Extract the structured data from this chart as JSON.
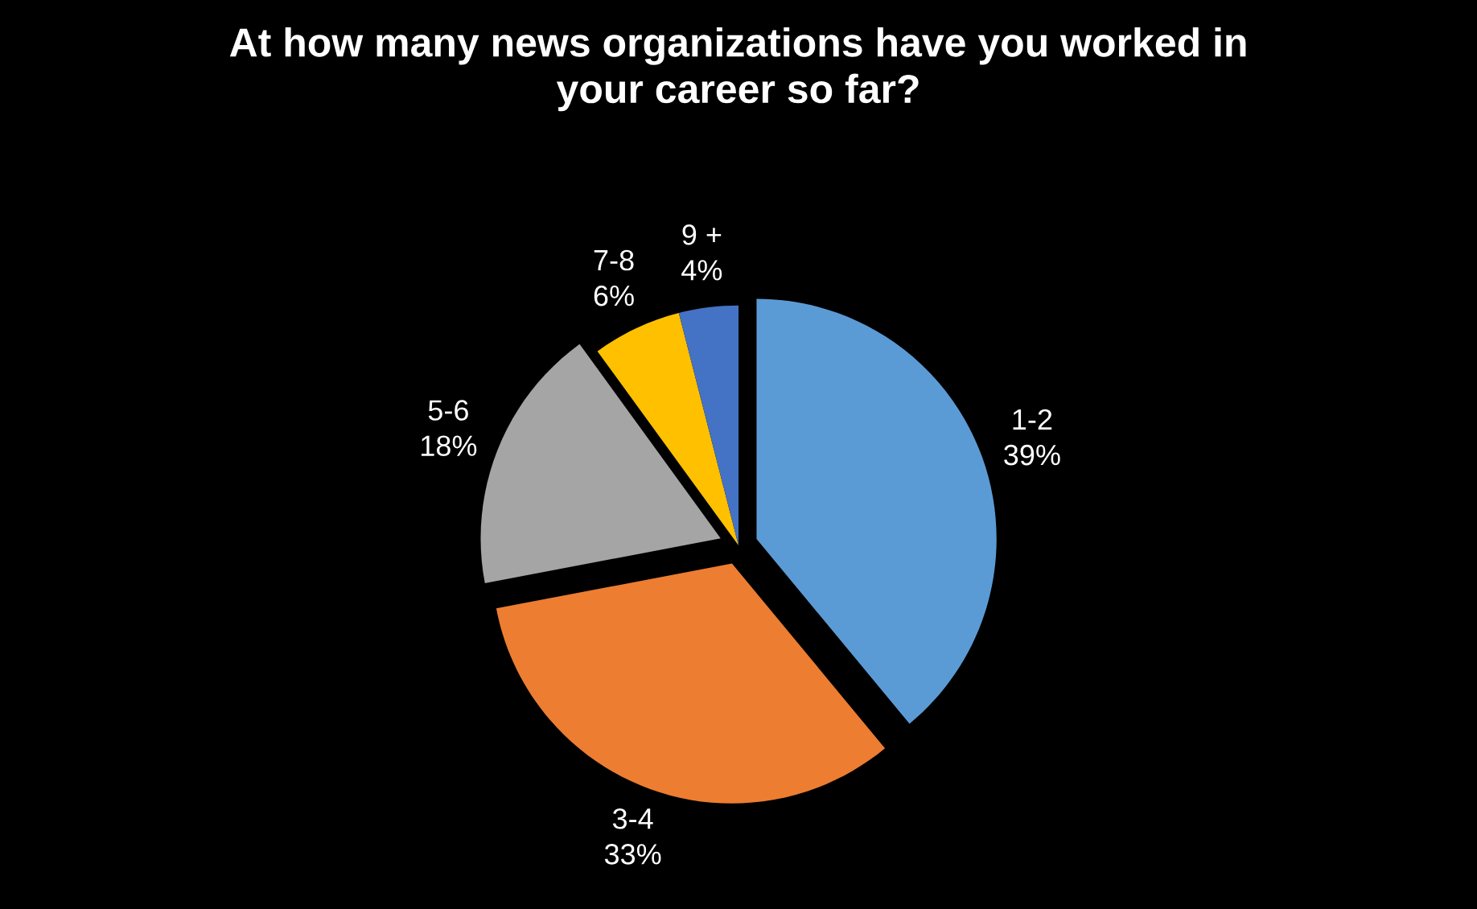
{
  "chart_data": {
    "type": "pie",
    "title": "At how many news organizations have you worked in\nyour career so far?",
    "categories": [
      "1-2",
      "3-4",
      "5-6",
      "7-8",
      "9 +"
    ],
    "values": [
      39,
      33,
      18,
      6,
      4
    ],
    "colors": [
      "#5b9bd5",
      "#ed7d31",
      "#a5a5a5",
      "#ffc000",
      "#4472c4"
    ],
    "value_labels": [
      "39%",
      "33%",
      "18%",
      "6%",
      "4%"
    ],
    "legend": false
  }
}
